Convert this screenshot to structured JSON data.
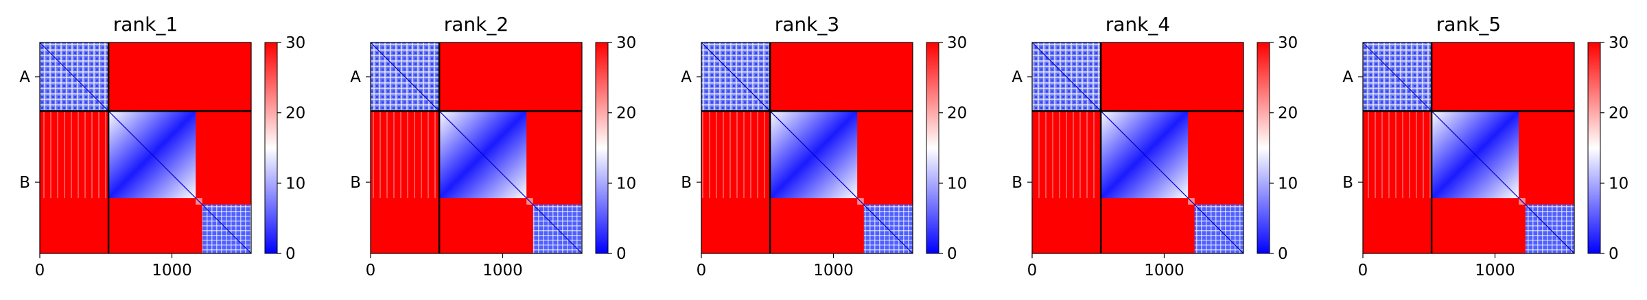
{
  "chart_data": {
    "type": "heatmap",
    "description_chains": [
      "A",
      "B"
    ],
    "chain_boundary": 520,
    "matrix_size": 1600,
    "colormap": {
      "low": "#0000ff",
      "mid": "#ffffff",
      "high": "#ff0000"
    },
    "clim": [
      0,
      30
    ],
    "xticks": [
      0,
      1000
    ],
    "xtick_labels": [
      "0",
      "1000"
    ],
    "ytick_labels": [
      "A",
      "B"
    ],
    "colorbar_ticks": [
      0,
      10,
      20,
      30
    ],
    "colorbar_tick_labels": [
      "0",
      "10",
      "20",
      "30"
    ],
    "panels": [
      {
        "title": "rank_1"
      },
      {
        "title": "rank_2"
      },
      {
        "title": "rank_3"
      },
      {
        "title": "rank_4"
      },
      {
        "title": "rank_5"
      }
    ],
    "blocks": [
      {
        "from": 0,
        "to": 520,
        "kind": "domain-A",
        "level": 9
      },
      {
        "from": 520,
        "to": 1180,
        "kind": "domain-B1",
        "level": 8
      },
      {
        "from": 1180,
        "to": 1230,
        "kind": "linker",
        "level": 22
      },
      {
        "from": 1230,
        "to": 1600,
        "kind": "domain-B2",
        "level": 9
      }
    ],
    "inter_block_level": 30
  }
}
